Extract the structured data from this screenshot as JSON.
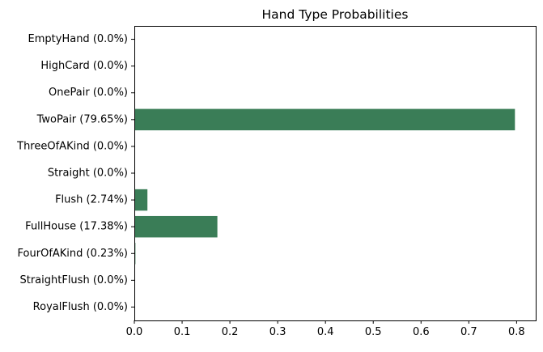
{
  "chart_data": {
    "type": "bar",
    "orientation": "horizontal",
    "title": "Hand Type Probabilities",
    "xlabel": "",
    "ylabel": "",
    "categories": [
      "EmptyHand (0.0%)",
      "HighCard (0.0%)",
      "OnePair (0.0%)",
      "TwoPair (79.65%)",
      "ThreeOfAKind (0.0%)",
      "Straight (0.0%)",
      "Flush (2.74%)",
      "FullHouse (17.38%)",
      "FourOfAKind (0.23%)",
      "StraightFlush (0.0%)",
      "RoyalFlush (0.0%)"
    ],
    "values": [
      0.0,
      0.0,
      0.0,
      0.7965,
      0.0,
      0.0,
      0.0274,
      0.1738,
      0.0023,
      0.0,
      0.0
    ],
    "xlim": [
      0,
      0.84
    ],
    "xticks": [
      0.0,
      0.1,
      0.2,
      0.3,
      0.4,
      0.5,
      0.6,
      0.7,
      0.8
    ],
    "xtick_labels": [
      "0.0",
      "0.1",
      "0.2",
      "0.3",
      "0.4",
      "0.5",
      "0.6",
      "0.7",
      "0.8"
    ],
    "bar_color": "#3a7d57",
    "grid": false,
    "legend": "none"
  }
}
